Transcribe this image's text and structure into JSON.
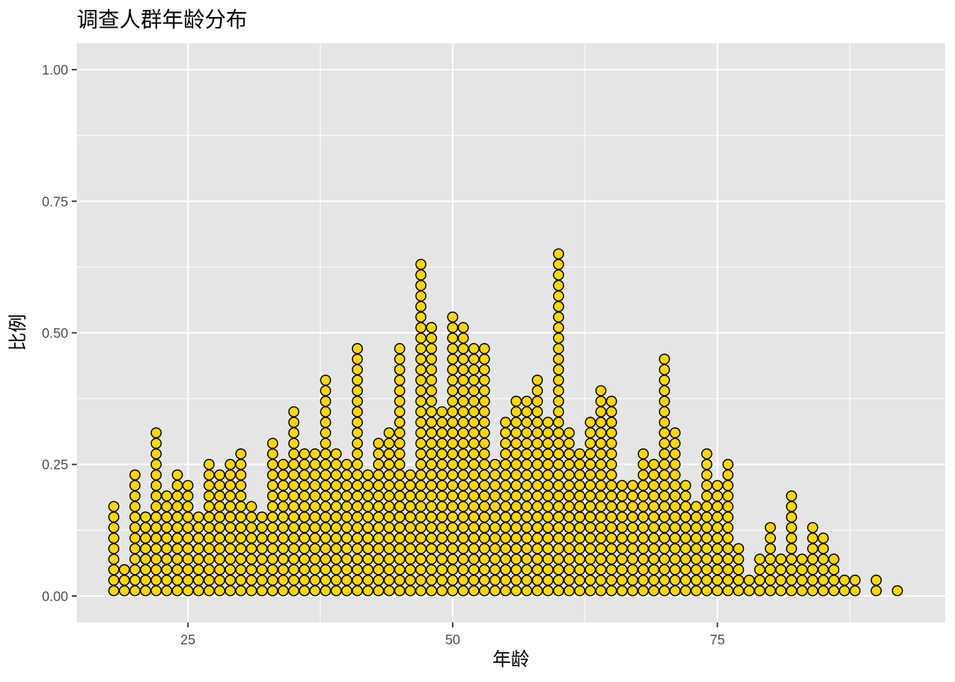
{
  "chart_data": {
    "type": "dotplot",
    "title": "调查人群年龄分布",
    "xlabel": "年龄",
    "ylabel": "比例",
    "xlim": [
      14.5,
      96.5
    ],
    "ylim": [
      -0.05,
      1.05
    ],
    "x_ticks": [
      25,
      50,
      75
    ],
    "x_tick_labels": [
      "25",
      "50",
      "75"
    ],
    "y_ticks": [
      0,
      0.25,
      0.5,
      0.75,
      1.0
    ],
    "y_tick_labels": [
      "0.00",
      "0.25",
      "0.50",
      "0.75",
      "1.00"
    ],
    "grid": true,
    "dot_fill": "#FFD700",
    "dot_stroke": "#000000",
    "panel_background": "#E5E5E5",
    "stack_step": 0.02,
    "ages": [
      18,
      19,
      20,
      21,
      22,
      23,
      24,
      25,
      26,
      27,
      28,
      29,
      30,
      31,
      32,
      33,
      34,
      35,
      36,
      37,
      38,
      39,
      40,
      41,
      42,
      43,
      44,
      45,
      46,
      47,
      48,
      49,
      50,
      51,
      52,
      53,
      54,
      55,
      56,
      57,
      58,
      59,
      60,
      61,
      62,
      63,
      64,
      65,
      66,
      67,
      68,
      69,
      70,
      71,
      72,
      73,
      74,
      75,
      76,
      77,
      78,
      79,
      80,
      81,
      82,
      83,
      84,
      85,
      86,
      87,
      88,
      90,
      92
    ],
    "counts": [
      9,
      3,
      12,
      8,
      16,
      10,
      12,
      11,
      8,
      13,
      12,
      13,
      14,
      9,
      8,
      15,
      13,
      18,
      14,
      14,
      21,
      14,
      13,
      24,
      12,
      15,
      16,
      24,
      12,
      32,
      26,
      18,
      27,
      26,
      24,
      24,
      13,
      17,
      19,
      19,
      21,
      17,
      33,
      16,
      14,
      17,
      20,
      19,
      11,
      11,
      14,
      13,
      23,
      16,
      11,
      9,
      14,
      11,
      13,
      5,
      2,
      4,
      7,
      4,
      10,
      4,
      7,
      6,
      4,
      2,
      2,
      2,
      1
    ]
  }
}
